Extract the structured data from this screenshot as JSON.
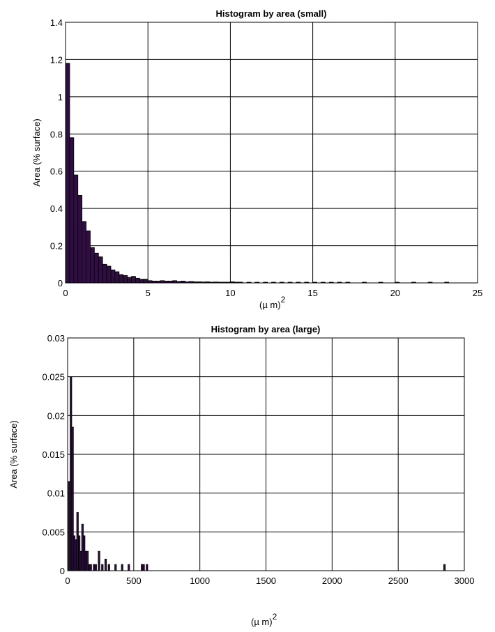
{
  "chart_data": [
    {
      "type": "bar",
      "title": "Histogram by area (small)",
      "xlabel": "(µ m)",
      "xlabel_sup": "2",
      "ylabel": "Area (% surface)",
      "xlim": [
        0,
        25
      ],
      "ylim": [
        0,
        1.4
      ],
      "xticks": [
        "0",
        "5",
        "10",
        "15",
        "20",
        "25"
      ],
      "yticks": [
        "0",
        "0.2",
        "0.4",
        "0.6",
        "0.8",
        "1",
        "1.2",
        "1.4"
      ],
      "grid": true,
      "bar_color": "#2e0f3f",
      "bin_width": 0.25,
      "x": [
        0.125,
        0.375,
        0.625,
        0.875,
        1.125,
        1.375,
        1.625,
        1.875,
        2.125,
        2.375,
        2.625,
        2.875,
        3.125,
        3.375,
        3.625,
        3.875,
        4.125,
        4.375,
        4.625,
        4.875,
        5.125,
        5.375,
        5.625,
        5.875,
        6.125,
        6.375,
        6.625,
        6.875,
        7.125,
        7.375,
        7.625,
        7.875,
        8.125,
        8.375,
        8.625,
        8.875,
        9.125,
        9.375,
        9.625,
        9.875,
        10.125,
        10.375,
        10.625,
        11.125,
        11.625,
        12.125,
        12.625,
        13.125,
        13.625,
        14.125,
        14.625,
        15.125,
        15.625,
        16.125,
        16.625,
        17.125,
        18.125,
        19.125,
        20.125,
        21.125,
        22.125,
        23.125
      ],
      "values": [
        1.18,
        0.78,
        0.58,
        0.47,
        0.33,
        0.28,
        0.19,
        0.16,
        0.14,
        0.1,
        0.09,
        0.07,
        0.06,
        0.045,
        0.04,
        0.03,
        0.035,
        0.025,
        0.02,
        0.02,
        0.012,
        0.01,
        0.01,
        0.012,
        0.01,
        0.01,
        0.012,
        0.008,
        0.01,
        0.006,
        0.008,
        0.006,
        0.006,
        0.005,
        0.006,
        0.004,
        0.005,
        0.004,
        0.004,
        0.004,
        0.006,
        0.004,
        0.004,
        0.003,
        0.003,
        0.003,
        0.002,
        0.003,
        0.002,
        0.002,
        0.003,
        0.002,
        0.002,
        0.002,
        0.002,
        0.002,
        0.002,
        0.001,
        0.002,
        0.001,
        0.001,
        0.001
      ]
    },
    {
      "type": "bar",
      "title": "Histogram by area (large)",
      "xlabel": "(µ m)",
      "xlabel_sup": "2",
      "ylabel": "Area (% surface)",
      "xlim": [
        0,
        3000
      ],
      "ylim": [
        0,
        0.03
      ],
      "xticks": [
        "0",
        "500",
        "1000",
        "1500",
        "2000",
        "2500",
        "3000"
      ],
      "yticks": [
        "0",
        "0.005",
        "0.01",
        "0.015",
        "0.02",
        "0.025",
        "0.03"
      ],
      "grid": true,
      "bar_color": "#2e0f3f",
      "bin_width": 12.5,
      "x": [
        12.5,
        25,
        37.5,
        50,
        62.5,
        75,
        87.5,
        100,
        112.5,
        125,
        137.5,
        150,
        162.5,
        175,
        200,
        212.5,
        237.5,
        262.5,
        287.5,
        312.5,
        362.5,
        412.5,
        462.5,
        562.5,
        575,
        600,
        2850
      ],
      "values": [
        0.0115,
        0.025,
        0.0185,
        0.0045,
        0.004,
        0.0075,
        0.0045,
        0.0025,
        0.006,
        0.0045,
        0.0025,
        0.0025,
        0.0008,
        0.0008,
        0.0008,
        0.0008,
        0.0025,
        0.0008,
        0.0015,
        0.0008,
        0.0008,
        0.0008,
        0.0008,
        0.0008,
        0.0008,
        0.0008,
        0.0008
      ]
    }
  ]
}
